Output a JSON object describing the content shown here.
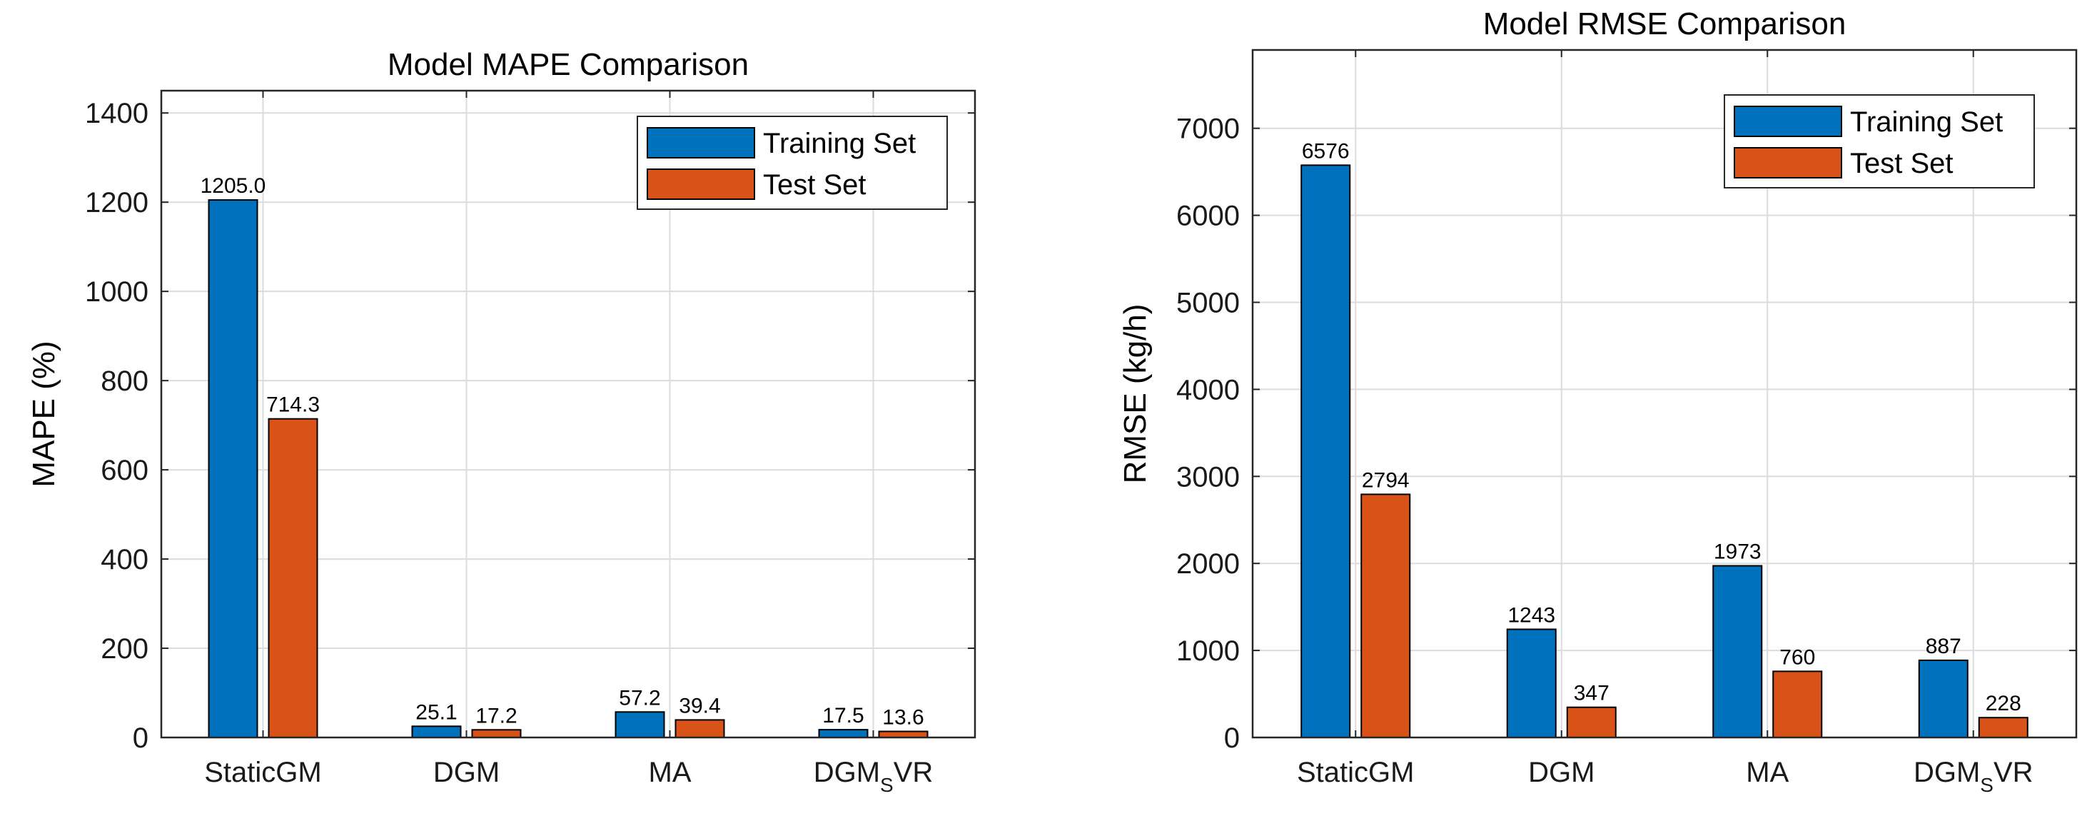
{
  "colors": {
    "training": "#0072BD",
    "test": "#D95319",
    "grid": "#DCDCDC",
    "axis": "#262626"
  },
  "chart_data": [
    {
      "type": "bar",
      "title": "Model MAPE Comparison",
      "ylabel": "MAPE (%)",
      "xlabel": "",
      "ylim": [
        0,
        1450
      ],
      "yticks": [
        0,
        200,
        400,
        600,
        800,
        1000,
        1200,
        1400
      ],
      "grid": true,
      "legend_position": "top-right",
      "categories": [
        {
          "base": "StaticGM",
          "sub": "",
          "suffix": ""
        },
        {
          "base": "DGM",
          "sub": "",
          "suffix": ""
        },
        {
          "base": "MA",
          "sub": "",
          "suffix": ""
        },
        {
          "base": "DGM",
          "sub": "S",
          "suffix": "VR"
        }
      ],
      "series": [
        {
          "name": "Training Set",
          "values": [
            1205.0,
            25.1,
            57.2,
            17.5
          ],
          "labels": [
            "1205.0",
            "25.1",
            "57.2",
            "17.5"
          ]
        },
        {
          "name": "Test Set",
          "values": [
            714.3,
            17.2,
            39.4,
            13.6
          ],
          "labels": [
            "714.3",
            "17.2",
            "39.4",
            "13.6"
          ]
        }
      ]
    },
    {
      "type": "bar",
      "title": "Model RMSE Comparison",
      "ylabel": "RMSE (kg/h)",
      "xlabel": "",
      "ylim": [
        0,
        7900
      ],
      "yticks": [
        0,
        1000,
        2000,
        3000,
        4000,
        5000,
        6000,
        7000
      ],
      "grid": true,
      "legend_position": "top-right",
      "categories": [
        {
          "base": "StaticGM",
          "sub": "",
          "suffix": ""
        },
        {
          "base": "DGM",
          "sub": "",
          "suffix": ""
        },
        {
          "base": "MA",
          "sub": "",
          "suffix": ""
        },
        {
          "base": "DGM",
          "sub": "S",
          "suffix": "VR"
        }
      ],
      "series": [
        {
          "name": "Training Set",
          "values": [
            6576,
            1243,
            1973,
            887
          ],
          "labels": [
            "6576",
            "1243",
            "1973",
            "887"
          ]
        },
        {
          "name": "Test Set",
          "values": [
            2794,
            347,
            760,
            228
          ],
          "labels": [
            "2794",
            "347",
            "760",
            "228"
          ]
        }
      ]
    }
  ]
}
